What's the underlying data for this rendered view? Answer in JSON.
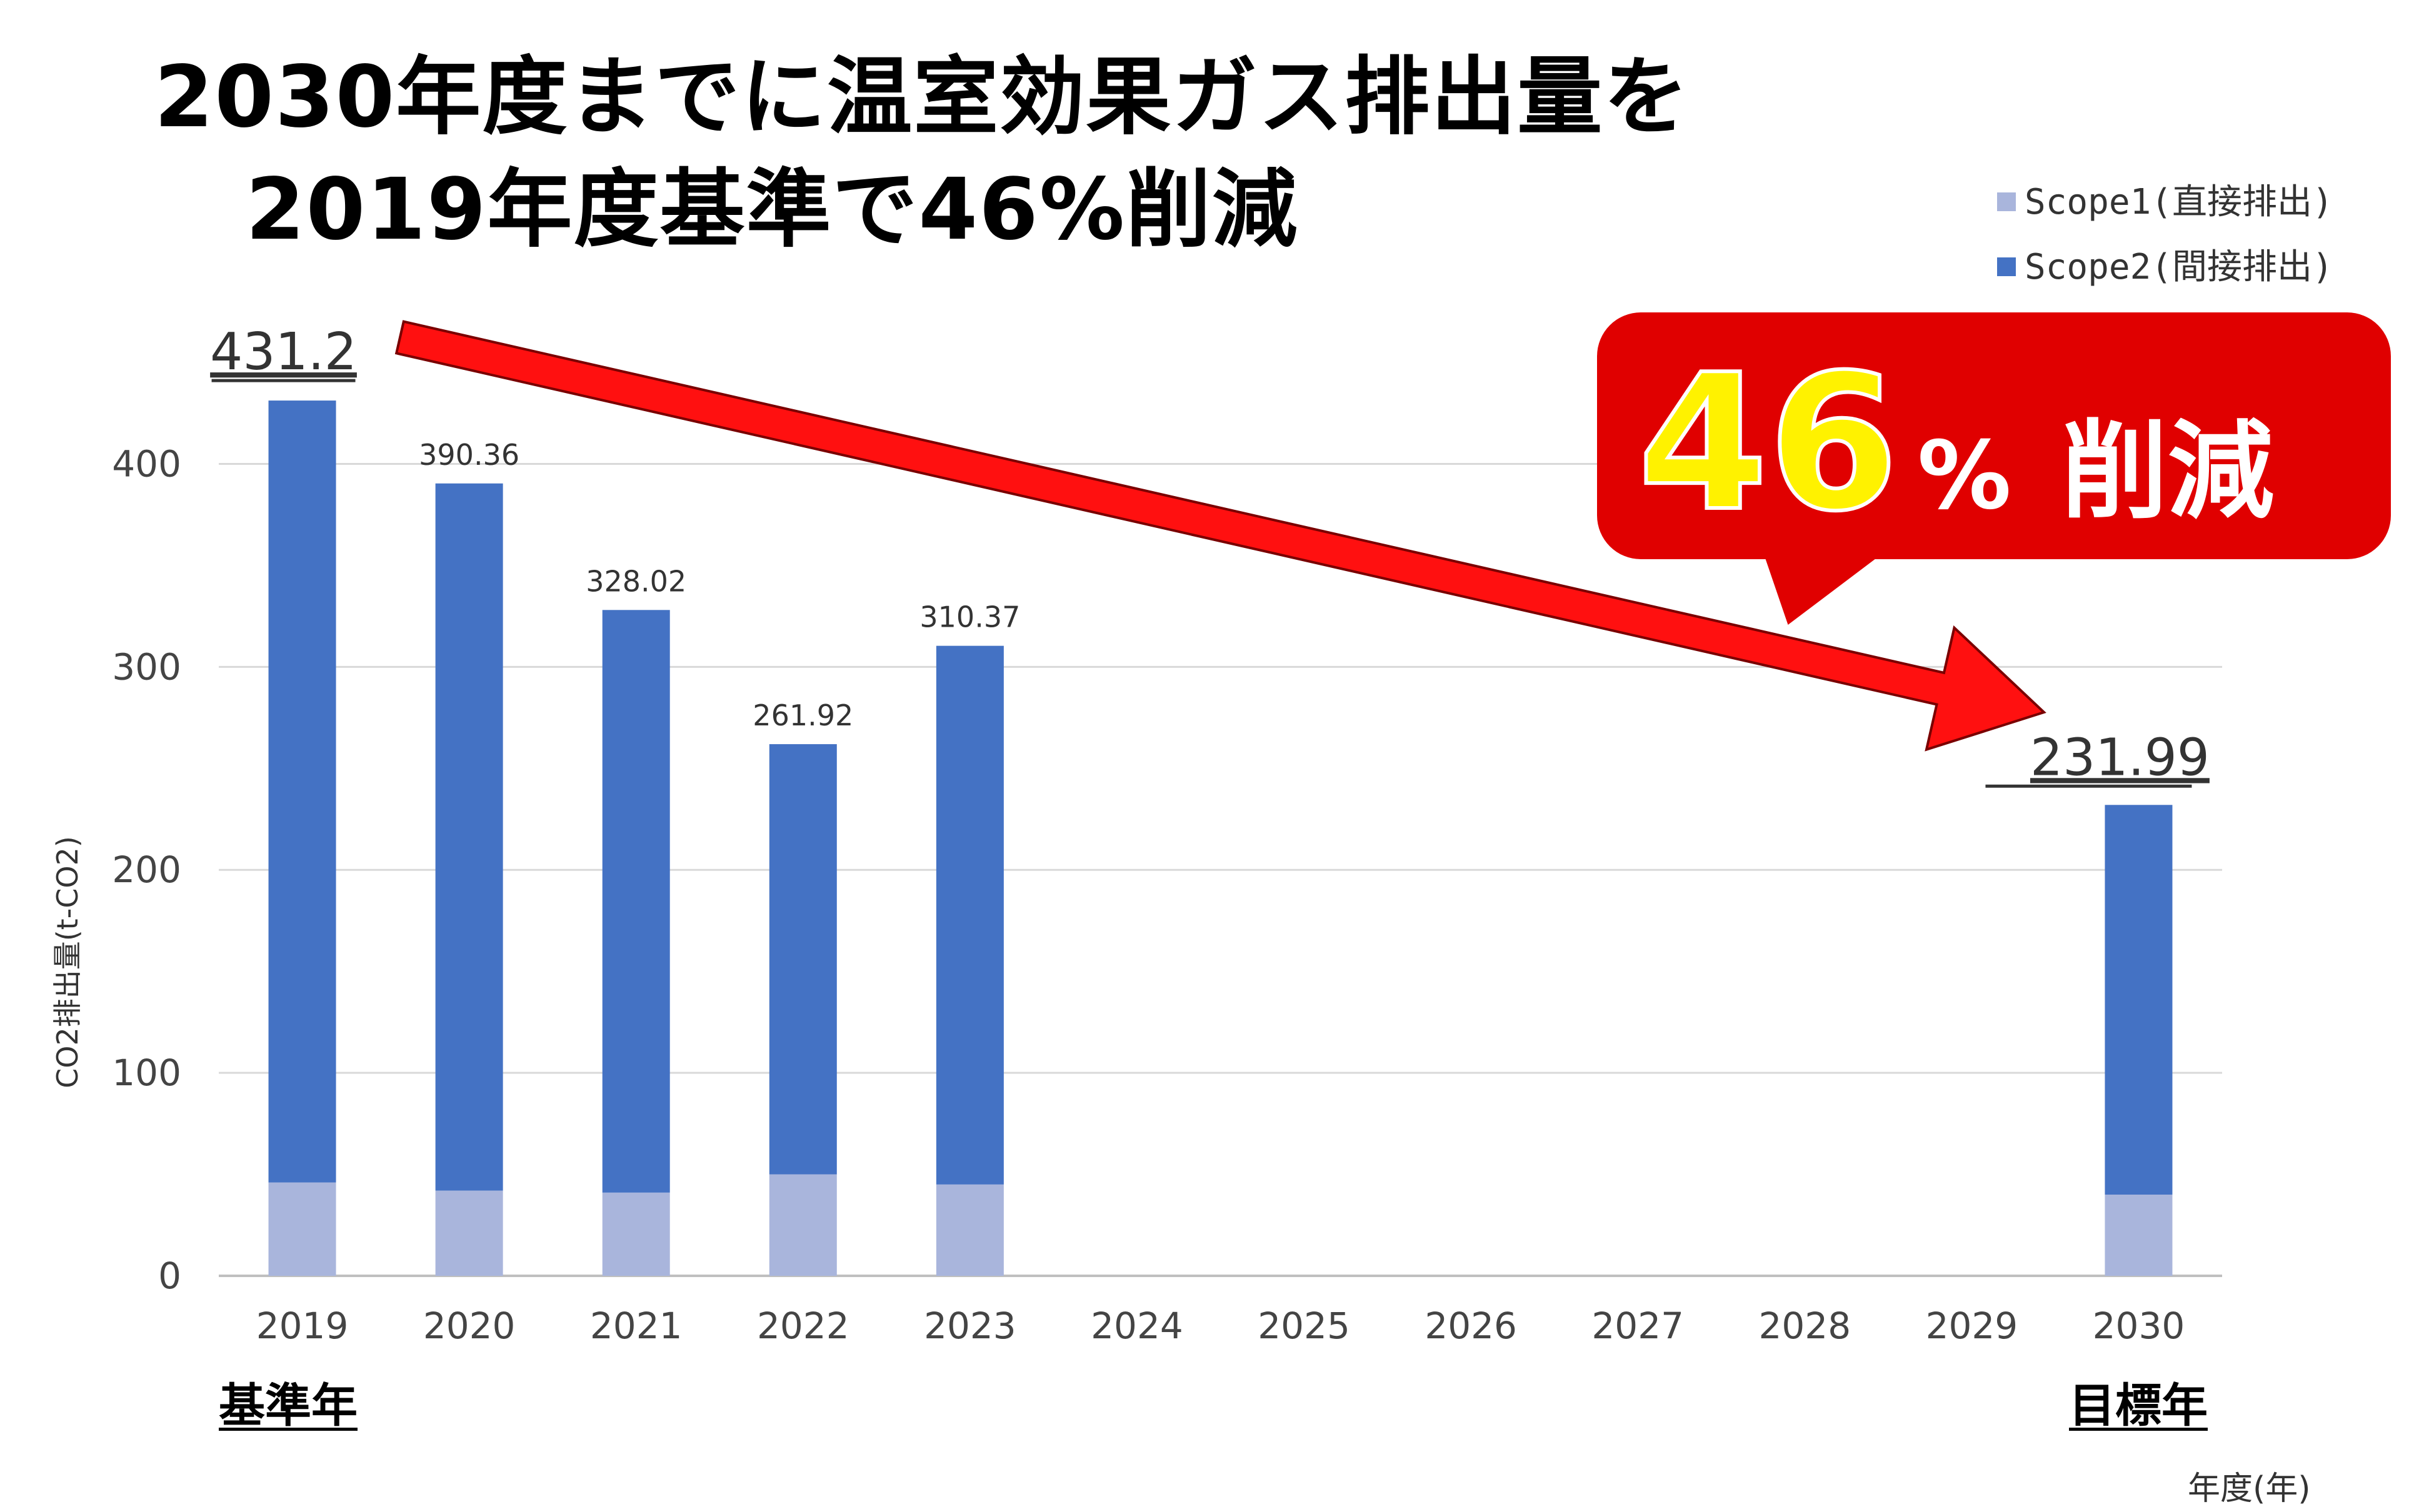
{
  "title_line1": "2030年度までに温室効果ガス排出量を",
  "title_line2": "2019年度基準で46%削減",
  "legend": [
    {
      "label": "Scope1(直接排出)",
      "color": "#a9b5dc"
    },
    {
      "label": "Scope2(間接排出)",
      "color": "#4472c4"
    }
  ],
  "callout": {
    "big": "46",
    "pct": "%",
    "word": "削減",
    "bg_color": "#e00000",
    "big_color": "#fff200"
  },
  "base_year_label": "基準年",
  "target_year_label": "目標年",
  "arrow_start_value": "431.2",
  "arrow_end_value": "231.99",
  "arrow_color": "#ff1010",
  "chart_data": {
    "type": "bar",
    "stacked": true,
    "categories": [
      "2019",
      "2020",
      "2021",
      "2022",
      "2023",
      "2024",
      "2025",
      "2026",
      "2027",
      "2028",
      "2029",
      "2030"
    ],
    "series": [
      {
        "name": "Scope1(直接排出)",
        "values": [
          46,
          42,
          41,
          50,
          45,
          null,
          null,
          null,
          null,
          null,
          null,
          40
        ],
        "color": "#a9b5dc"
      },
      {
        "name": "Scope2(間接排出)",
        "values": [
          385.2,
          348.36,
          287.02,
          211.92,
          265.37,
          null,
          null,
          null,
          null,
          null,
          null,
          191.99
        ],
        "color": "#4472c4"
      }
    ],
    "totals": [
      431.2,
      390.36,
      328.02,
      261.92,
      310.37,
      null,
      null,
      null,
      null,
      null,
      null,
      231.99
    ],
    "data_labels": [
      "",
      "390.36",
      "328.02",
      "261.92",
      "310.37",
      "",
      "",
      "",
      "",
      "",
      "",
      ""
    ],
    "xlabel": "年度(年)",
    "ylabel": "CO2排出量(t-CO2)",
    "ylim": [
      0,
      450
    ],
    "yticks": [
      0,
      100,
      200,
      300,
      400
    ],
    "grid": true,
    "legend_position": "top-right"
  }
}
